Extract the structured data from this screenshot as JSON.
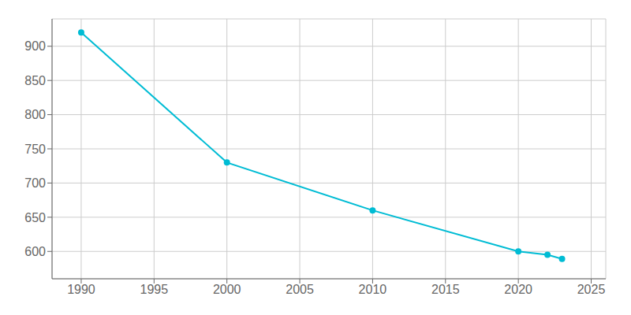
{
  "chart_data": {
    "type": "line",
    "x": [
      1990,
      2000,
      2010,
      2020,
      2022,
      2023
    ],
    "values": [
      920,
      730,
      660,
      600,
      595,
      589
    ],
    "color": "#00bcd4",
    "marker": "circle",
    "xlim": [
      1988,
      2026
    ],
    "ylim": [
      560,
      940
    ],
    "xticks": [
      1990,
      1995,
      2000,
      2005,
      2010,
      2015,
      2020,
      2025
    ],
    "yticks": [
      600,
      650,
      700,
      750,
      800,
      850,
      900
    ],
    "grid": true
  }
}
